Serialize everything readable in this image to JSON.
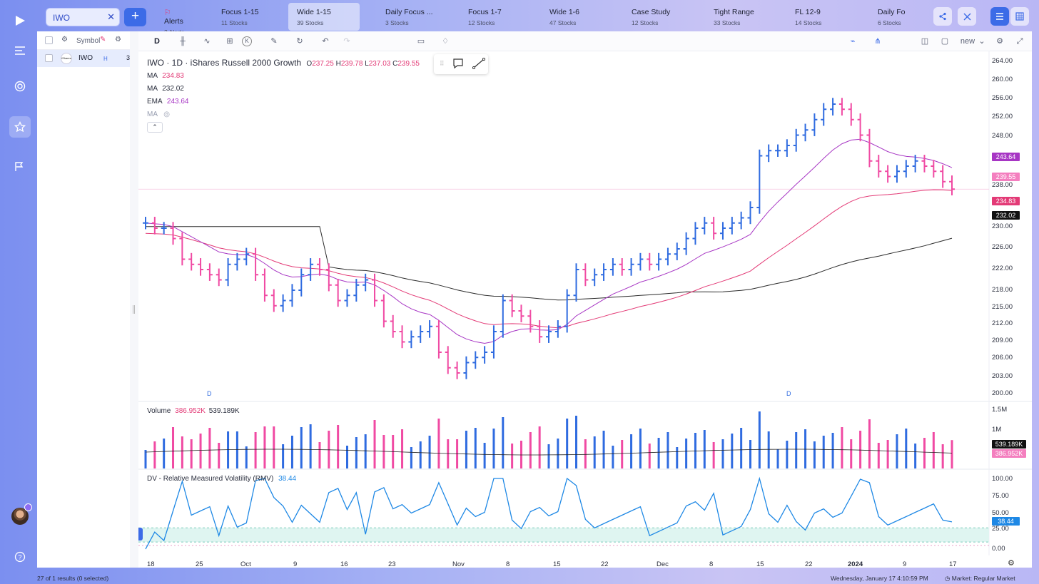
{
  "app": {
    "logo_icon": "play-logo-icon"
  },
  "rail": {
    "items": [
      {
        "icon": "menu-icon"
      },
      {
        "icon": "target-icon"
      },
      {
        "icon": "star-icon"
      },
      {
        "icon": "flag-scan-icon"
      },
      {
        "icon": "help-icon"
      }
    ]
  },
  "search": {
    "value": "IWO",
    "close": "✕"
  },
  "add": {
    "label": "+"
  },
  "watchlists": [
    {
      "name": "Alerts",
      "count": "3 Alerts"
    },
    {
      "name": "Focus 1-15",
      "count": "11 Stocks"
    },
    {
      "name": "Wide 1-15",
      "count": "39 Stocks"
    },
    {
      "name": "Daily Focus ...",
      "count": "3 Stocks"
    },
    {
      "name": "Focus 1-7",
      "count": "12 Stocks"
    },
    {
      "name": "Wide 1-6",
      "count": "47 Stocks"
    },
    {
      "name": "Case Study",
      "count": "12 Stocks"
    },
    {
      "name": "Tight Range",
      "count": "33 Stocks"
    },
    {
      "name": "FL 12-9",
      "count": "14 Stocks"
    },
    {
      "name": "Daily Fo",
      "count": "6 Stocks"
    }
  ],
  "list_panel": {
    "header": "Symbol",
    "rows": [
      {
        "symbol": "IWO",
        "flag": "H",
        "extra": "3",
        "logo_text": "iShares"
      }
    ]
  },
  "toolbar": {
    "interval": "D",
    "layout_name": "new"
  },
  "chart": {
    "legend": {
      "title": "IWO · 1D · iShares Russell 2000 Growth",
      "o_label": "O",
      "o": "237.25",
      "h_label": "H",
      "h": "239.78",
      "l_label": "L",
      "l": "237.03",
      "c_label": "C",
      "c": "239.55",
      "ind1_name": "MA",
      "ind1_val": "234.83",
      "ind2_name": "MA",
      "ind2_val": "232.02",
      "ind3_name": "EMA",
      "ind3_val": "243.64",
      "ind4_name": "MA"
    },
    "price_axis": [
      "264.00",
      "260.00",
      "256.00",
      "252.00",
      "248.00",
      "238.00",
      "230.00",
      "226.00",
      "222.00",
      "218.00",
      "215.00",
      "212.00",
      "209.00",
      "206.00",
      "203.00",
      "200.00"
    ],
    "tags": {
      "ema": "243.64",
      "last": "239.55",
      "ma1": "234.83",
      "ma2": "232.02"
    },
    "d_markers": [
      "D",
      "D"
    ],
    "volume": {
      "name": "Volume",
      "v1": "386.952K",
      "v2": "539.189K",
      "axis": [
        "1.5M",
        "1M"
      ],
      "tag1": "539.189K",
      "tag2": "386.952K"
    },
    "rmv": {
      "name": "DV - Relative Measured Volatility (RMV)",
      "value": "38.44",
      "axis": [
        "100.00",
        "75.00",
        "50.00",
        "25.00",
        "0.00"
      ],
      "tag": "38.44"
    },
    "x_axis": [
      "18",
      "25",
      "Oct",
      "9",
      "16",
      "23",
      "Nov",
      "8",
      "15",
      "22",
      "Dec",
      "8",
      "15",
      "22",
      "2024",
      "9",
      "17"
    ]
  },
  "chart_data": {
    "type": "bar",
    "title": "IWO · 1D · iShares Russell 2000 Growth",
    "x_ticks": [
      "18",
      "25",
      "Oct",
      "9",
      "16",
      "23",
      "Nov",
      "8",
      "15",
      "22",
      "Dec",
      "8",
      "15",
      "22",
      "2024",
      "9",
      "17"
    ],
    "ylim": [
      200,
      264
    ],
    "last_bar": {
      "open": 237.25,
      "high": 239.78,
      "low": 237.03,
      "close": 239.55
    },
    "closes": [
      233,
      232,
      232,
      230,
      226,
      225,
      224,
      223,
      222,
      225,
      226,
      227,
      223,
      219,
      217,
      218,
      220,
      223,
      225,
      224,
      221,
      218,
      219,
      221,
      222,
      218,
      214,
      212,
      210,
      211,
      212,
      213,
      208,
      205,
      204,
      206,
      207,
      208,
      212,
      218,
      216,
      215,
      213,
      211,
      212,
      213,
      219,
      224,
      222,
      223,
      224,
      225,
      224,
      225,
      226,
      225,
      226,
      227,
      228,
      230,
      232,
      233,
      231,
      232,
      233,
      234,
      236,
      246,
      247,
      247,
      248,
      250,
      251,
      253,
      255,
      256,
      255,
      253,
      250,
      245,
      243,
      242,
      243,
      244,
      245,
      244,
      243,
      241,
      239.55
    ],
    "series": [
      {
        "name": "MA",
        "value": 234.83
      },
      {
        "name": "MA",
        "value": 232.02
      },
      {
        "name": "EMA",
        "value": 243.64
      }
    ],
    "volume_last": [
      "386.952K",
      "539.189K"
    ],
    "rmv_last": 38.44
  },
  "status": {
    "left": "27 of 1 results (0 selected)",
    "time": "Wednesday, January 17 4:10:59 PM",
    "market": "Market: Regular Market"
  },
  "colors": {
    "up": "#2f6be0",
    "down": "#f04aa3",
    "ma_pink": "#e33a76",
    "ema_purple": "#a736c4",
    "ma_black": "#2b2b2b",
    "rmv": "#1e88e5"
  }
}
